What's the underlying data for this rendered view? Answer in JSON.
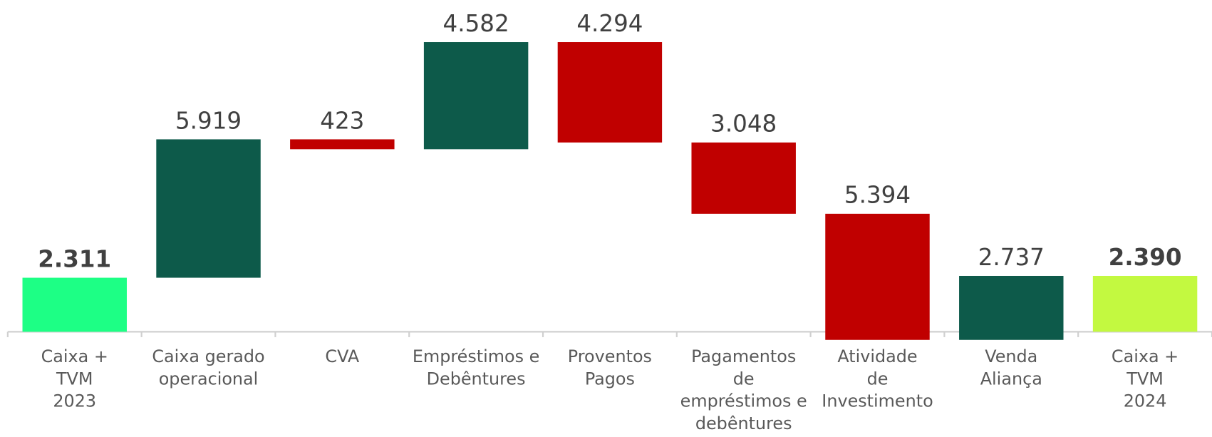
{
  "chart_data": {
    "type": "waterfall",
    "categories": [
      "Caixa +\nTVM\n2023",
      "Caixa gerado\noperacional",
      "CVA",
      "Empréstimos e\nDebêntures",
      "Proventos\nPagos",
      "Pagamentos\nde\nempréstimos e\ndebêntures",
      "Atividade\nde\nInvestimento",
      "Venda\nAliança",
      "Caixa +\nTVM\n2024"
    ],
    "values": [
      2311,
      5919,
      -423,
      4582,
      -4294,
      -3048,
      -5394,
      2737,
      2390
    ],
    "value_labels": [
      "2.311",
      "5.919",
      "423",
      "4.582",
      "4.294",
      "3.048",
      "5.394",
      "2.737",
      "2.390"
    ],
    "measure": [
      "absolute",
      "relative",
      "relative",
      "relative",
      "relative",
      "relative",
      "relative",
      "relative",
      "absolute"
    ],
    "colors": [
      "#1dff85",
      "#0d5a4a",
      "#c00000",
      "#0d5a4a",
      "#c00000",
      "#c00000",
      "#c00000",
      "#0d5a4a",
      "#c3f940"
    ],
    "ylim": [
      -1000,
      13000
    ]
  }
}
